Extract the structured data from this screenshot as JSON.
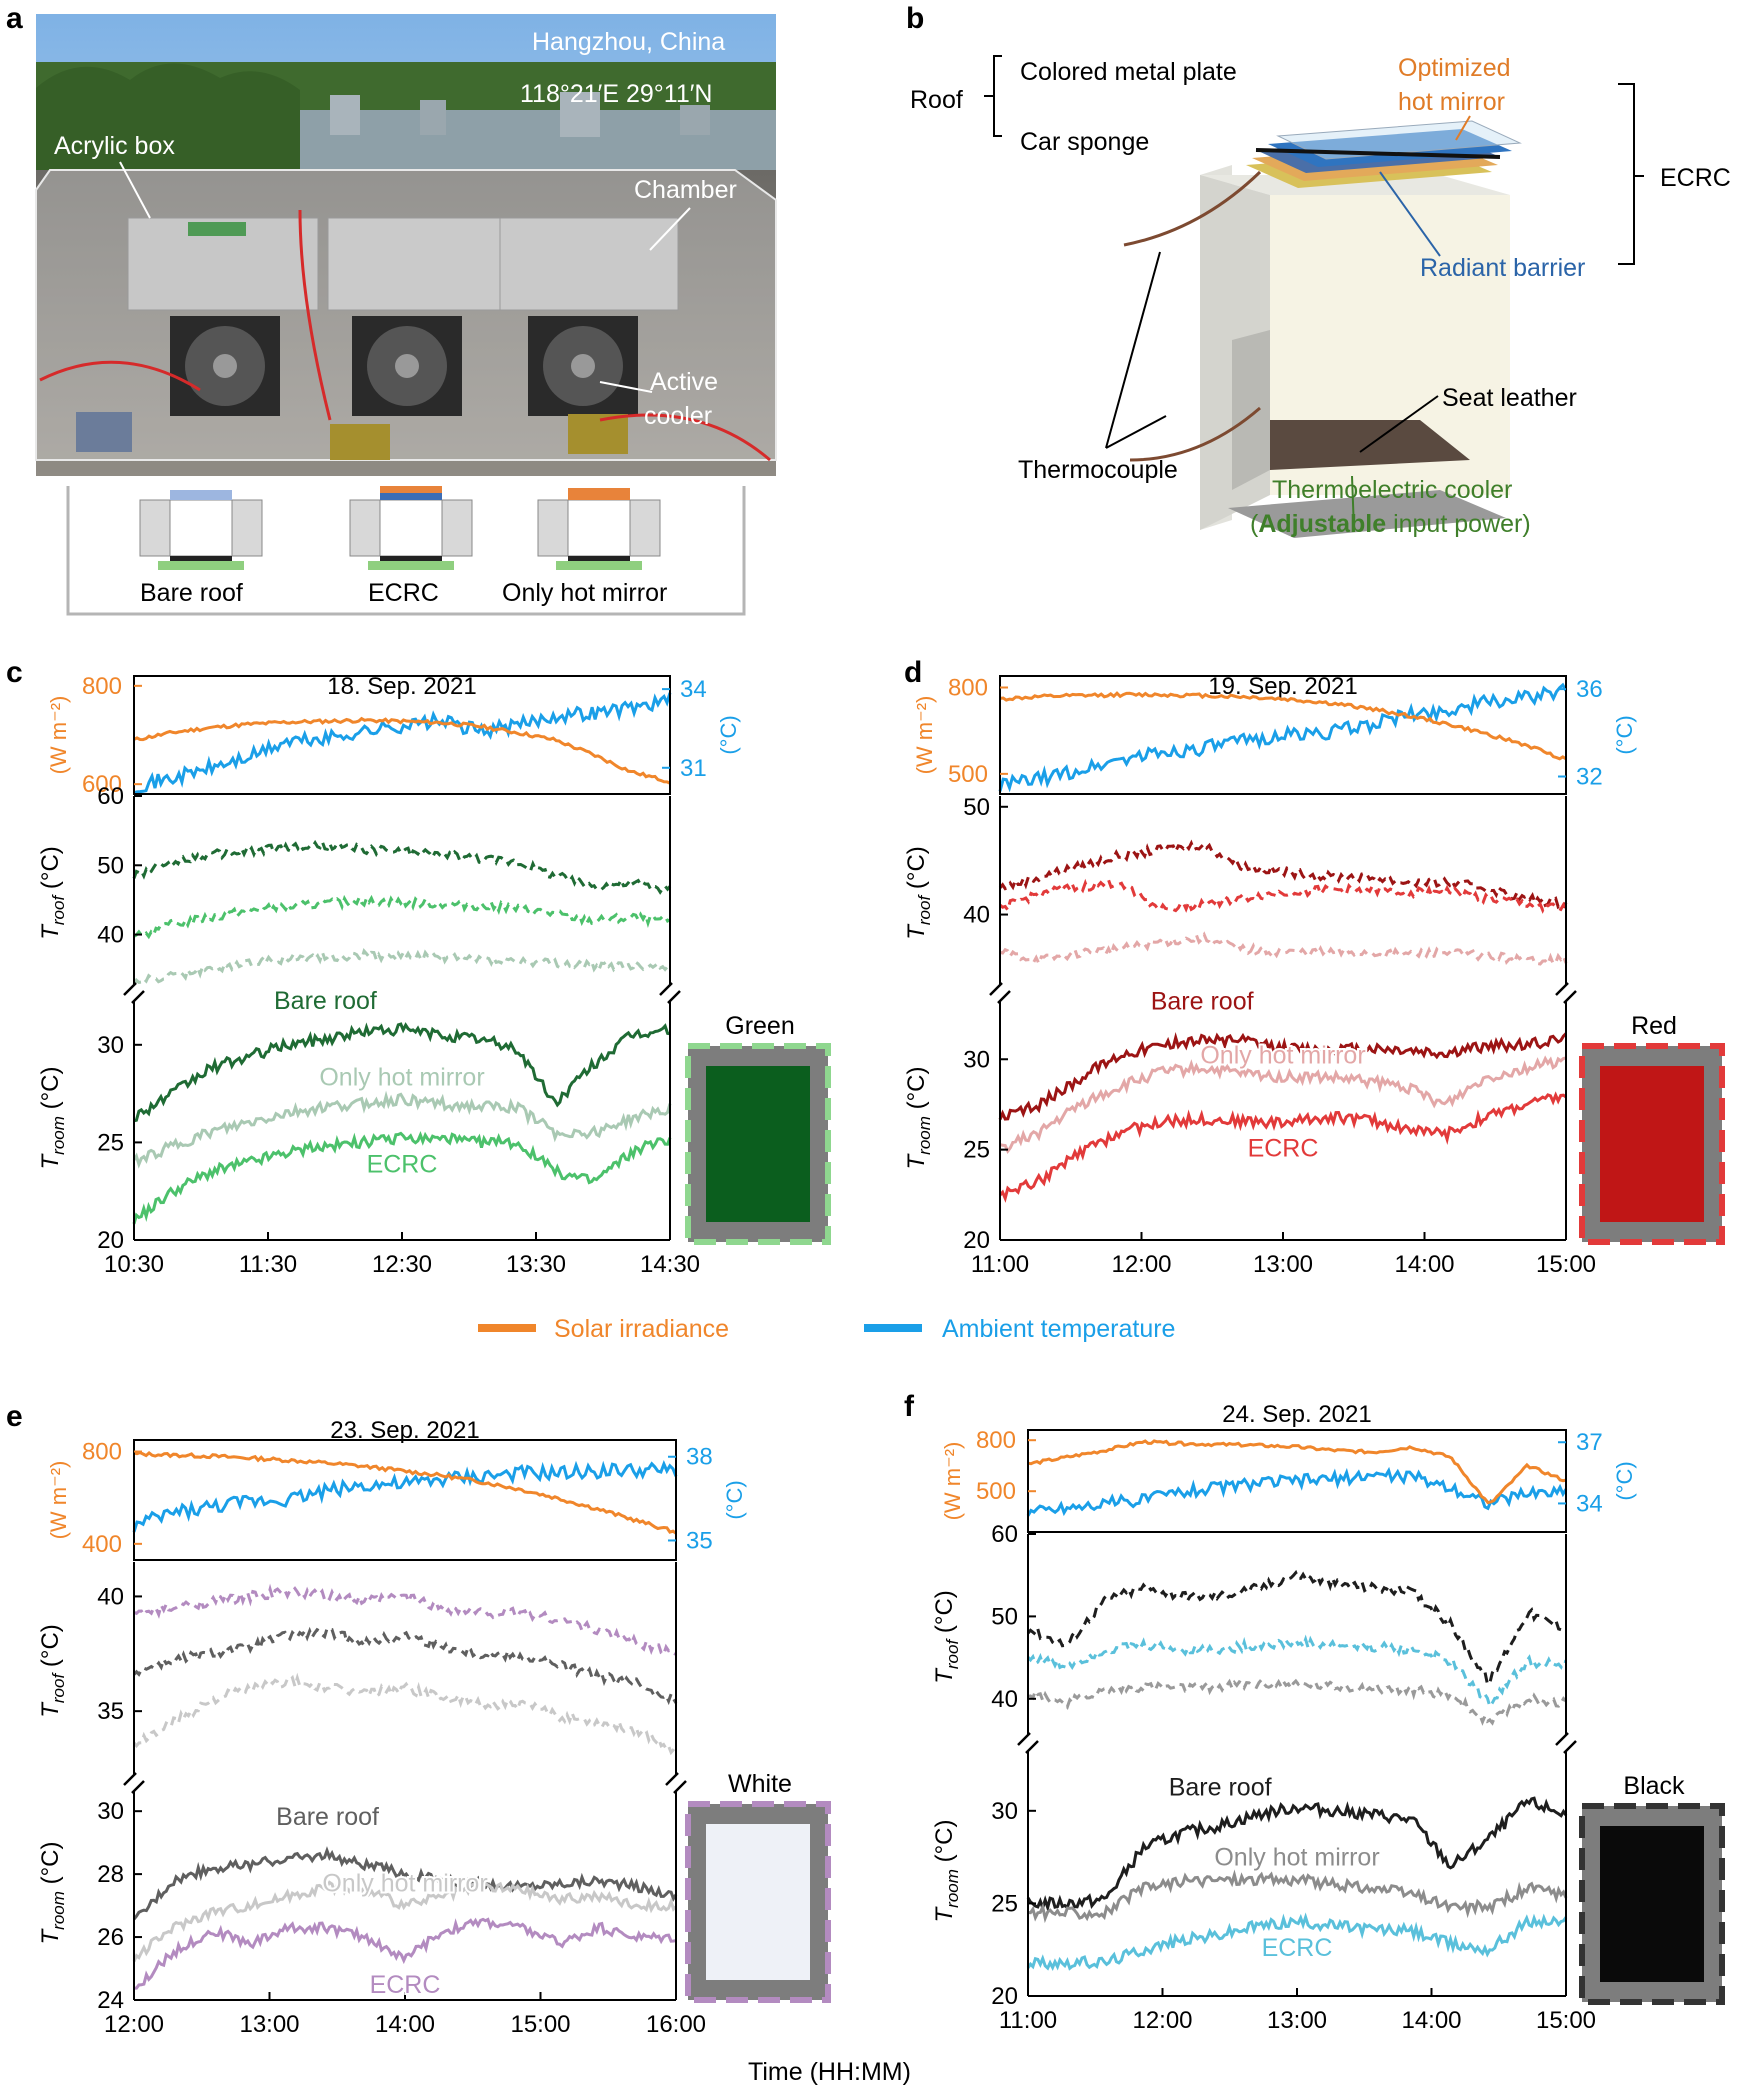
{
  "panel_a": {
    "letter": "a",
    "location": "Hangzhou, China",
    "coords": "118°21′E  29°11′N",
    "labels": [
      "Acrylic box",
      "Chamber",
      "Active",
      "cooler"
    ],
    "schematics": [
      "Bare roof",
      "ECRC",
      "Only hot mirror"
    ]
  },
  "panel_b": {
    "letter": "b",
    "roof": "Roof",
    "roof_items": [
      "Colored metal plate",
      "Car sponge"
    ],
    "hot_mirror": [
      "Optimized",
      "hot mirror"
    ],
    "ecrc": "ECRC",
    "radiant_barrier": "Radiant barrier",
    "seat_leather": "Seat leather",
    "thermocouple": "Thermocouple",
    "cooler": "Thermoelectric cooler",
    "cooler_note_prefix": "(",
    "cooler_note_bold": "Adjustable",
    "cooler_note_suffix": " input power)"
  },
  "legend": {
    "solar": "Solar irradiance",
    "ambient": "Ambient temperature"
  },
  "x_axis_label": "Time (HH:MM)",
  "colors": {
    "solar": "#f0862b",
    "ambient": "#1a9fe8"
  },
  "chart_data": [
    {
      "panel": "c",
      "type": "line",
      "title": "18. Sep. 2021",
      "sample": "Green",
      "x_ticks": [
        "10:30",
        "11:30",
        "12:30",
        "13:30",
        "14:30"
      ],
      "top": {
        "ylabel_left": "(W m⁻²)",
        "ylabel_right": "(°C)",
        "left_ticks": [
          600,
          800
        ],
        "right_ticks": [
          31,
          34
        ],
        "left_range": [
          580,
          820
        ],
        "right_range": [
          30,
          34.5
        ],
        "solar": [
          690,
          705,
          715,
          722,
          726,
          728,
          730,
          728,
          725,
          718,
          705,
          690,
          660,
          625,
          605
        ],
        "ambient": [
          30.3,
          30.6,
          31.0,
          31.4,
          32.0,
          32.1,
          32.4,
          32.6,
          32.8,
          32.4,
          32.6,
          33.0,
          33.1,
          33.3,
          33.6
        ]
      },
      "roof": {
        "ylabel": "T roof (°C)",
        "ticks": [
          40,
          50,
          60
        ],
        "range": [
          32,
          60
        ],
        "series": [
          {
            "name": "Bare roof",
            "color": "#1f6b34",
            "values": [
              48.5,
              50.5,
              51.5,
              52.0,
              52.5,
              52.8,
              52.3,
              52.0,
              51.5,
              51.0,
              50.5,
              48.5,
              47.0,
              47.5,
              46.5
            ]
          },
          {
            "name": "ECRC",
            "color": "#4cc16b",
            "values": [
              39.5,
              41.5,
              42.5,
              43.5,
              44.0,
              44.5,
              44.8,
              44.7,
              44.5,
              44.2,
              43.8,
              43.0,
              42.0,
              42.5,
              42.0
            ]
          },
          {
            "name": "Only hot mirror",
            "color": "#a9c9b3",
            "values": [
              33.2,
              34.0,
              35.0,
              36.0,
              36.5,
              36.8,
              37.0,
              36.9,
              36.8,
              36.5,
              36.2,
              35.8,
              35.5,
              35.5,
              35.5
            ]
          }
        ]
      },
      "room": {
        "ylabel": "T room (°C)",
        "ticks": [
          20,
          25,
          30
        ],
        "range": [
          20,
          32.5
        ],
        "series": [
          {
            "name": "Bare roof",
            "color": "#1f6b34",
            "values": [
              26.3,
              27.5,
              28.8,
              29.4,
              30.0,
              30.3,
              30.7,
              30.8,
              30.5,
              30.3,
              29.8,
              27.0,
              29.0,
              30.5,
              30.8
            ]
          },
          {
            "name": "Only hot mirror",
            "color": "#a9c9b3",
            "values": [
              24.0,
              24.8,
              25.5,
              26.0,
              26.5,
              26.8,
              27.0,
              27.2,
              27.0,
              26.8,
              26.8,
              25.5,
              25.5,
              26.2,
              26.8
            ]
          },
          {
            "name": "ECRC",
            "color": "#4cc16b",
            "values": [
              21.0,
              22.5,
              23.5,
              24.0,
              24.5,
              24.8,
              25.0,
              25.2,
              25.2,
              25.0,
              25.0,
              23.5,
              23.0,
              24.5,
              25.2
            ]
          }
        ]
      }
    },
    {
      "panel": "d",
      "type": "line",
      "title": "19. Sep. 2021",
      "sample": "Red",
      "x_ticks": [
        "11:00",
        "12:00",
        "13:00",
        "14:00",
        "15:00"
      ],
      "top": {
        "ylabel_left": "(W m⁻²)",
        "ylabel_right": "(°C)",
        "left_ticks": [
          500,
          800
        ],
        "right_ticks": [
          32,
          36
        ],
        "left_range": [
          430,
          840
        ],
        "right_range": [
          31.2,
          36.6
        ],
        "solar": [
          760,
          768,
          772,
          775,
          775,
          772,
          768,
          760,
          748,
          730,
          705,
          675,
          640,
          600,
          550
        ],
        "ambient": [
          31.6,
          31.9,
          32.3,
          32.8,
          33.1,
          33.3,
          33.6,
          33.9,
          34.0,
          34.3,
          34.8,
          35.0,
          35.4,
          35.6,
          35.9
        ]
      },
      "roof": {
        "ylabel": "T roof (°C)",
        "ticks": [
          40,
          50
        ],
        "range": [
          33,
          51
        ],
        "series": [
          {
            "name": "Bare roof",
            "color": "#9c1414",
            "values": [
              42.5,
              43.5,
              44.5,
              45.5,
              46.0,
              46.5,
              44.5,
              44.0,
              43.5,
              43.5,
              43.0,
              43.0,
              42.5,
              41.5,
              41.0
            ]
          },
          {
            "name": "ECRC",
            "color": "#e23a3a",
            "values": [
              40.5,
              42.0,
              42.5,
              43.0,
              40.5,
              41.0,
              41.5,
              42.0,
              42.3,
              42.3,
              42.0,
              42.2,
              41.5,
              41.0,
              40.5
            ]
          },
          {
            "name": "Only hot mirror",
            "color": "#e3a7a7",
            "values": [
              36.5,
              35.8,
              36.5,
              36.8,
              37.5,
              37.8,
              36.8,
              36.5,
              36.5,
              36.5,
              36.3,
              36.5,
              36.2,
              35.8,
              35.8
            ]
          }
        ]
      },
      "room": {
        "ylabel": "T room (°C)",
        "ticks": [
          20,
          25,
          30
        ],
        "range": [
          20,
          33.5
        ],
        "series": [
          {
            "name": "Bare roof",
            "color": "#9c1414",
            "values": [
              26.7,
              27.5,
              29.0,
              30.3,
              30.8,
              31.1,
              31.0,
              30.6,
              30.5,
              30.6,
              30.5,
              30.3,
              30.7,
              30.8,
              31.2
            ]
          },
          {
            "name": "Only hot mirror",
            "color": "#e3a7a7",
            "values": [
              25.0,
              26.0,
              27.5,
              28.5,
              29.3,
              29.5,
              29.2,
              29.0,
              29.0,
              28.8,
              28.5,
              27.5,
              29.0,
              29.5,
              30.0
            ]
          },
          {
            "name": "ECRC",
            "color": "#e23a3a",
            "values": [
              22.5,
              23.3,
              24.8,
              26.0,
              26.5,
              26.7,
              26.6,
              26.5,
              26.8,
              26.7,
              26.2,
              25.8,
              26.8,
              27.5,
              28.0
            ]
          }
        ]
      }
    },
    {
      "panel": "e",
      "type": "line",
      "title": "23. Sep. 2021",
      "sample": "White",
      "x_ticks": [
        "12:00",
        "13:00",
        "14:00",
        "15:00",
        "16:00"
      ],
      "top": {
        "ylabel_left": "(W m⁻²)",
        "ylabel_right": "(°C)",
        "left_ticks": [
          400,
          800
        ],
        "right_ticks": [
          35,
          38
        ],
        "left_range": [
          330,
          850
        ],
        "right_range": [
          34.3,
          38.6
        ],
        "solar": [
          790,
          785,
          780,
          772,
          762,
          750,
          735,
          715,
          695,
          668,
          635,
          595,
          550,
          500,
          450
        ],
        "ambient": [
          35.5,
          36.0,
          36.2,
          36.4,
          36.5,
          36.8,
          37.0,
          37.0,
          37.2,
          37.3,
          37.4,
          37.4,
          37.5,
          37.5,
          37.5
        ]
      },
      "roof": {
        "ylabel": "T roof (°C)",
        "ticks": [
          35,
          40
        ],
        "range": [
          32,
          41.5
        ],
        "series": [
          {
            "name": "ECRC",
            "color": "#b38bc0",
            "values": [
              39.2,
              39.5,
              39.8,
              40.0,
              40.2,
              40.0,
              39.8,
              40.0,
              39.5,
              39.3,
              39.3,
              39.0,
              38.5,
              38.0,
              37.5
            ]
          },
          {
            "name": "Bare roof",
            "color": "#5f5f5f",
            "values": [
              36.7,
              37.2,
              37.5,
              37.8,
              38.3,
              38.4,
              38.0,
              38.3,
              37.8,
              37.5,
              37.4,
              37.0,
              36.5,
              36.2,
              35.5
            ]
          },
          {
            "name": "Only hot mirror",
            "color": "#c8c8c8",
            "values": [
              33.5,
              34.5,
              35.5,
              36.0,
              36.3,
              36.0,
              35.8,
              36.0,
              35.6,
              35.3,
              35.3,
              34.8,
              34.5,
              34.2,
              33.3
            ]
          }
        ]
      },
      "room": {
        "ylabel": "T room (°C)",
        "ticks": [
          24,
          26,
          28,
          30
        ],
        "range": [
          24,
          30.8
        ],
        "series": [
          {
            "name": "Bare roof",
            "color": "#5f5f5f",
            "values": [
              26.5,
              27.8,
              28.2,
              28.3,
              28.5,
              28.6,
              28.3,
              28.0,
              27.8,
              27.7,
              27.6,
              27.7,
              27.8,
              27.6,
              27.3
            ]
          },
          {
            "name": "Only hot mirror",
            "color": "#c8c8c8",
            "values": [
              25.3,
              26.3,
              26.8,
              27.0,
              27.3,
              27.6,
              27.5,
              27.0,
              27.3,
              27.6,
              27.5,
              27.2,
              27.3,
              27.0,
              27.0
            ]
          },
          {
            "name": "ECRC",
            "color": "#b38bc0",
            "values": [
              24.3,
              25.5,
              26.2,
              25.8,
              26.3,
              26.3,
              26.0,
              25.3,
              26.2,
              26.5,
              26.3,
              25.8,
              26.3,
              26.0,
              26.0
            ]
          }
        ]
      }
    },
    {
      "panel": "f",
      "type": "line",
      "title": "24. Sep. 2021",
      "sample": "Black",
      "x_ticks": [
        "11:00",
        "12:00",
        "13:00",
        "14:00",
        "15:00"
      ],
      "top": {
        "ylabel_left": "(W m⁻²)",
        "ylabel_right": "(°C)",
        "left_ticks": [
          500,
          800
        ],
        "right_ticks": [
          34,
          37
        ],
        "left_range": [
          260,
          860
        ],
        "right_range": [
          32.6,
          37.6
        ],
        "solar": [
          660,
          700,
          740,
          790,
          780,
          775,
          770,
          760,
          740,
          730,
          760,
          700,
          420,
          650,
          560
        ],
        "ambient": [
          33.6,
          33.8,
          34.0,
          34.2,
          34.6,
          34.8,
          35.0,
          35.1,
          35.2,
          35.4,
          35.3,
          34.8,
          34.0,
          34.5,
          34.6
        ]
      },
      "roof": {
        "ylabel": "T roof (°C)",
        "ticks": [
          40,
          50,
          60
        ],
        "range": [
          35,
          60
        ],
        "series": [
          {
            "name": "Bare roof",
            "color": "#1e1e1e",
            "values": [
              48.5,
              46.5,
              52.0,
              53.5,
              52.5,
              52.5,
              53.5,
              55.0,
              54.0,
              53.5,
              53.0,
              49.0,
              42.0,
              50.5,
              48.5
            ]
          },
          {
            "name": "ECRC",
            "color": "#5ac0db",
            "values": [
              45.0,
              44.0,
              46.0,
              46.5,
              46.0,
              46.0,
              46.5,
              46.8,
              46.5,
              46.3,
              46.0,
              44.5,
              39.5,
              44.5,
              44.0
            ]
          },
          {
            "name": "Only hot mirror",
            "color": "#9a9a9a",
            "values": [
              40.8,
              39.5,
              41.0,
              41.5,
              41.3,
              41.5,
              41.8,
              41.8,
              41.5,
              41.3,
              41.0,
              40.5,
              37.0,
              40.0,
              39.5
            ]
          }
        ]
      },
      "room": {
        "ylabel": "T room (°C)",
        "ticks": [
          20,
          25,
          30
        ],
        "range": [
          20,
          33.5
        ],
        "series": [
          {
            "name": "Bare roof",
            "color": "#1e1e1e",
            "values": [
              25.0,
              25.0,
              25.2,
              28.0,
              28.8,
              29.2,
              29.8,
              30.2,
              30.0,
              29.8,
              29.5,
              27.0,
              28.5,
              30.5,
              29.8
            ]
          },
          {
            "name": "Only hot mirror",
            "color": "#8c8c8c",
            "values": [
              24.5,
              24.5,
              24.5,
              25.8,
              26.2,
              26.3,
              26.3,
              26.3,
              26.0,
              25.8,
              25.5,
              24.8,
              24.8,
              25.8,
              25.5
            ]
          },
          {
            "name": "ECRC",
            "color": "#5ac0db",
            "values": [
              21.8,
              21.8,
              21.8,
              22.5,
              23.0,
              23.3,
              23.8,
              24.0,
              23.8,
              23.6,
              23.5,
              22.8,
              22.5,
              24.0,
              24.0
            ]
          }
        ]
      }
    }
  ]
}
